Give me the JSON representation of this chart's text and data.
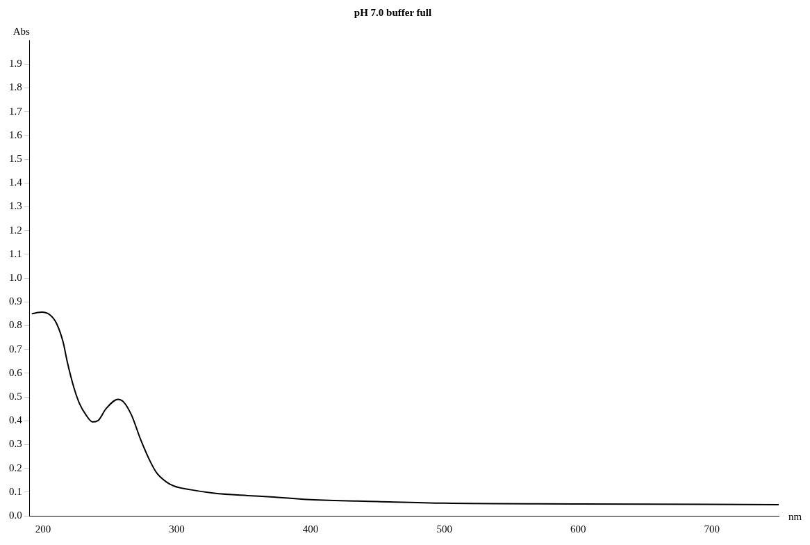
{
  "chart_data": {
    "type": "line",
    "title": "pH 7.0 buffer full",
    "xlabel": "nm",
    "ylabel": "Abs",
    "x": [
      192,
      196,
      199,
      205,
      210,
      215,
      218,
      223,
      227,
      232,
      237,
      241,
      247,
      256,
      260,
      266,
      273,
      280,
      285,
      292,
      298,
      310,
      328,
      353,
      370,
      400,
      450,
      500,
      600,
      750
    ],
    "series": [
      {
        "color": "#000000",
        "values": [
          0.85,
          0.855,
          0.857,
          0.846,
          0.81,
          0.73,
          0.65,
          0.54,
          0.475,
          0.425,
          0.395,
          0.4,
          0.45,
          0.49,
          0.48,
          0.425,
          0.32,
          0.23,
          0.18,
          0.143,
          0.125,
          0.11,
          0.095,
          0.085,
          0.08,
          0.068,
          0.06,
          0.053,
          0.05,
          0.047
        ]
      }
    ],
    "xlim": [
      190,
      750
    ],
    "xticks": [
      200,
      300,
      400,
      500,
      600,
      700
    ],
    "ylim": [
      0,
      2.0
    ],
    "yticks": [
      {
        "value": 0,
        "label": "0.0"
      },
      0.1,
      0.2,
      0.3,
      0.4,
      0.5,
      0.6,
      0.7,
      0.8,
      0.9,
      {
        "value": 1,
        "label": "1.0"
      },
      1.1,
      1.2,
      1.3,
      1.4,
      1.5,
      1.6,
      1.7,
      1.8,
      1.9
    ],
    "grid": false,
    "legend": false,
    "marker": "none",
    "line_style": "solid"
  }
}
